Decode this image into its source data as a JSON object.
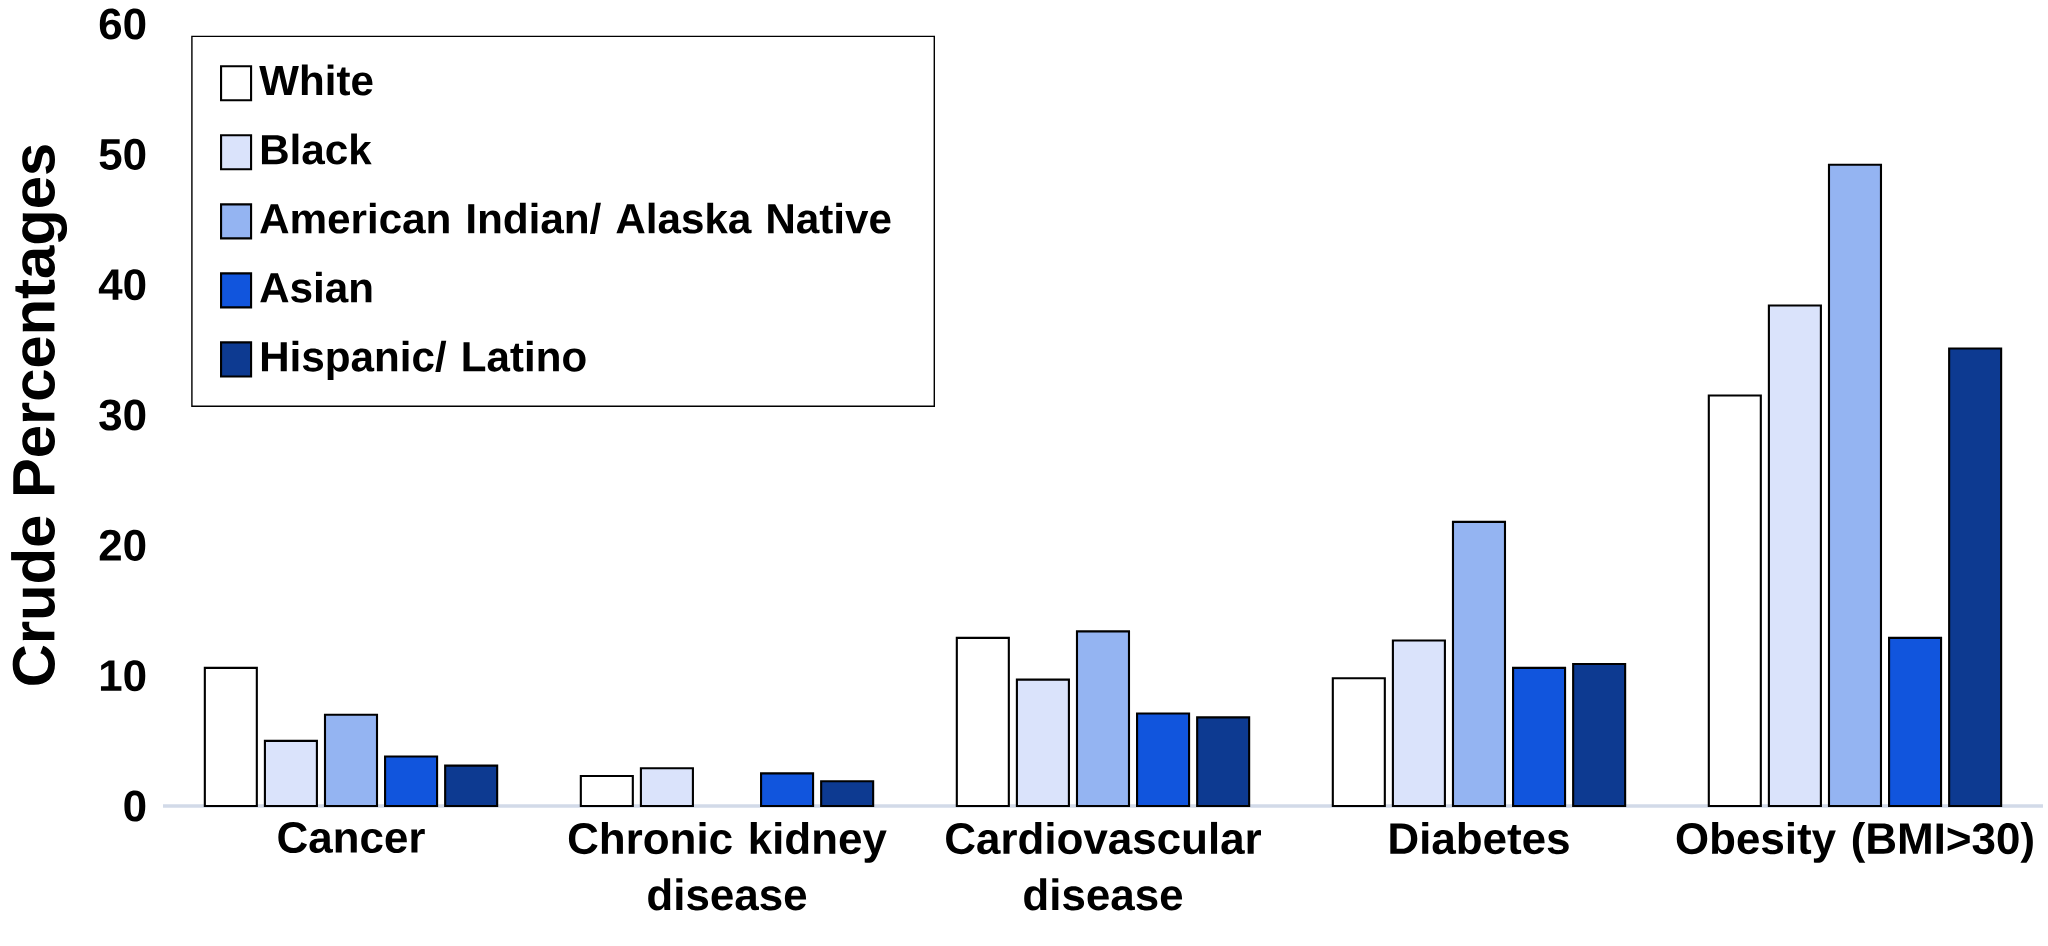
{
  "chart_data": {
    "type": "bar",
    "ylabel": "Crude Percentages",
    "categories": [
      "Cancer",
      "Chronic kidney disease",
      "Cardiovascular disease",
      "Diabetes",
      "Obesity (BMI>30)"
    ],
    "series": [
      {
        "name": "White",
        "color": "#ffffff",
        "values": [
          10.6,
          2.3,
          12.9,
          9.8,
          31.5
        ]
      },
      {
        "name": "Black",
        "color": "#dae3fb",
        "values": [
          5.0,
          2.9,
          9.7,
          12.7,
          38.4
        ]
      },
      {
        "name": "American Indian/ Alaska Native",
        "color": "#94b4f2",
        "values": [
          7.0,
          null,
          13.4,
          21.8,
          49.2
        ]
      },
      {
        "name": "Asian",
        "color": "#1155dd",
        "values": [
          3.8,
          2.5,
          7.1,
          10.6,
          12.9
        ]
      },
      {
        "name": "Hispanic/ Latino",
        "color": "#0d3a91",
        "values": [
          3.1,
          1.9,
          6.8,
          10.9,
          35.1
        ]
      }
    ],
    "ylim": [
      0,
      60
    ],
    "yticks": [
      0,
      10,
      20,
      30,
      40,
      50,
      60
    ],
    "legend": "top left"
  }
}
